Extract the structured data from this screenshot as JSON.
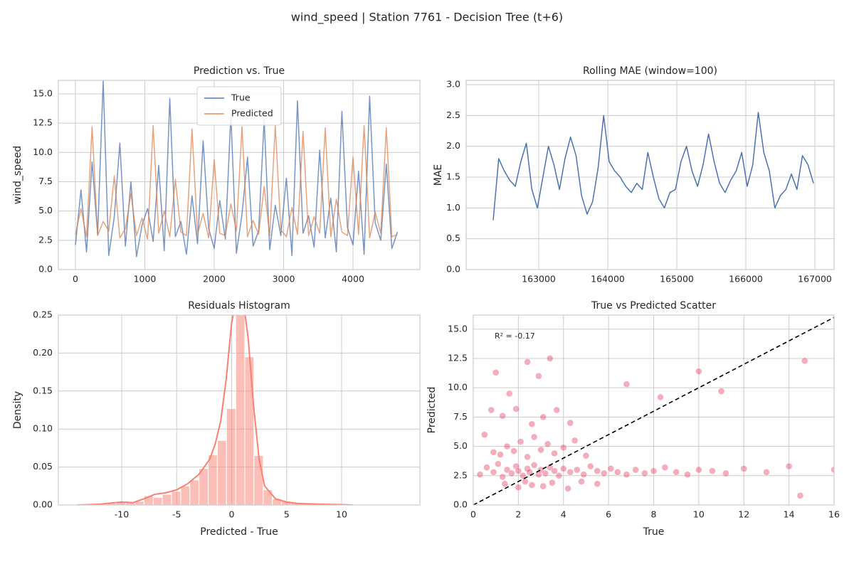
{
  "title": "wind_speed | Station 7761 - Decision Tree (t+6)",
  "chart_data": [
    {
      "type": "line",
      "title": "Prediction vs. True",
      "ylabel": "wind_speed",
      "grid": true,
      "legend": "upper center",
      "xlim": [
        -246,
        4964
      ],
      "ylim": [
        0,
        16.15
      ],
      "xticks": [
        0,
        1000,
        2000,
        3000,
        4000
      ],
      "yticks": [
        {
          "value": 0,
          "label": "0.0"
        },
        2.5,
        {
          "value": 5,
          "label": "5.0"
        },
        7.5,
        {
          "value": 10,
          "label": "10.0"
        },
        12.5,
        {
          "value": 15,
          "label": "15.0"
        }
      ],
      "x": [
        0,
        80,
        160,
        240,
        320,
        400,
        480,
        560,
        640,
        720,
        800,
        880,
        960,
        1040,
        1120,
        1200,
        1280,
        1360,
        1440,
        1520,
        1600,
        1680,
        1760,
        1840,
        1920,
        2000,
        2080,
        2160,
        2240,
        2320,
        2400,
        2480,
        2560,
        2640,
        2720,
        2800,
        2880,
        2960,
        3040,
        3120,
        3200,
        3280,
        3360,
        3440,
        3520,
        3600,
        3680,
        3760,
        3840,
        3920,
        4000,
        4080,
        4160,
        4240,
        4320,
        4400,
        4480,
        4560,
        4640
      ],
      "series": [
        {
          "name": "True",
          "color": "#4c72b0",
          "values": [
            2.1,
            6.8,
            1.5,
            9.2,
            3.0,
            16.1,
            1.2,
            4.5,
            10.8,
            2.0,
            7.5,
            1.1,
            3.8,
            5.2,
            2.4,
            8.9,
            1.6,
            14.6,
            2.8,
            4.1,
            1.3,
            6.3,
            2.2,
            11.0,
            3.5,
            1.8,
            5.9,
            2.6,
            13.2,
            1.4,
            4.7,
            9.6,
            2.0,
            3.3,
            12.8,
            1.7,
            5.5,
            2.9,
            7.8,
            1.2,
            14.4,
            3.1,
            4.6,
            1.9,
            10.2,
            2.7,
            6.1,
            1.5,
            13.5,
            3.6,
            2.1,
            8.4,
            1.3,
            14.8,
            4.0,
            2.5,
            9.0,
            1.8,
            3.2
          ]
        },
        {
          "name": "Predicted",
          "color": "#dd8452",
          "values": [
            3.0,
            5.2,
            2.8,
            12.2,
            2.9,
            4.1,
            3.3,
            8.0,
            2.7,
            3.5,
            6.5,
            2.9,
            4.4,
            2.6,
            12.3,
            3.1,
            5.0,
            2.8,
            7.7,
            3.2,
            2.9,
            12.0,
            3.0,
            4.8,
            2.7,
            9.4,
            3.1,
            2.9,
            5.6,
            3.3,
            12.2,
            2.8,
            4.2,
            3.0,
            7.1,
            2.9,
            12.3,
            3.4,
            2.8,
            5.3,
            3.0,
            11.8,
            2.9,
            4.5,
            3.1,
            12.1,
            2.8,
            6.0,
            3.2,
            2.9,
            9.6,
            3.0,
            12.3,
            2.7,
            4.9,
            3.1,
            12.1,
            2.8,
            3.0
          ]
        }
      ]
    },
    {
      "type": "line",
      "title": "Rolling MAE (window=100)",
      "ylabel": "MAE",
      "grid": true,
      "xlim": [
        161948,
        167278
      ],
      "ylim": [
        0,
        3.07
      ],
      "xticks": [
        163000,
        164000,
        165000,
        166000,
        167000
      ],
      "yticks": [
        {
          "value": 0,
          "label": "0.0"
        },
        0.5,
        {
          "value": 1,
          "label": "1.0"
        },
        1.5,
        {
          "value": 2,
          "label": "2.0"
        },
        2.5,
        {
          "value": 3,
          "label": "3.0"
        }
      ],
      "x": [
        162340,
        162420,
        162500,
        162580,
        162660,
        162740,
        162820,
        162900,
        162980,
        163060,
        163140,
        163220,
        163300,
        163380,
        163460,
        163540,
        163620,
        163700,
        163780,
        163860,
        163940,
        164020,
        164100,
        164180,
        164260,
        164340,
        164420,
        164500,
        164580,
        164660,
        164740,
        164820,
        164900,
        164980,
        165060,
        165140,
        165220,
        165300,
        165380,
        165460,
        165540,
        165620,
        165700,
        165780,
        165860,
        165940,
        166020,
        166100,
        166180,
        166260,
        166340,
        166420,
        166500,
        166580,
        166660,
        166740,
        166820,
        166900,
        166980
      ],
      "series": [
        {
          "color": "#4c72b0",
          "values": [
            0.8,
            1.8,
            1.6,
            1.45,
            1.35,
            1.75,
            2.05,
            1.3,
            1.0,
            1.5,
            2.0,
            1.7,
            1.3,
            1.8,
            2.15,
            1.85,
            1.2,
            0.9,
            1.1,
            1.65,
            2.5,
            1.75,
            1.6,
            1.5,
            1.35,
            1.25,
            1.4,
            1.3,
            1.9,
            1.5,
            1.15,
            1.0,
            1.25,
            1.3,
            1.75,
            2.0,
            1.6,
            1.35,
            1.7,
            2.2,
            1.75,
            1.4,
            1.25,
            1.45,
            1.6,
            1.9,
            1.35,
            1.7,
            2.55,
            1.9,
            1.6,
            1.0,
            1.2,
            1.3,
            1.55,
            1.3,
            1.85,
            1.7,
            1.4
          ]
        }
      ]
    },
    {
      "type": "histogram",
      "title": "Residuals Histogram",
      "xlabel": "Predicted - True",
      "ylabel": "Density",
      "grid": true,
      "color": "#fa8072",
      "xlim": [
        -15.76,
        17.12
      ],
      "ylim": [
        0,
        0.25
      ],
      "xticks": [
        -10,
        -5,
        0,
        5,
        10
      ],
      "yticks": [
        {
          "value": 0,
          "label": "0.00"
        },
        {
          "value": 0.05,
          "label": "0.05"
        },
        {
          "value": 0.1,
          "label": "0.10"
        },
        {
          "value": 0.15,
          "label": "0.15"
        },
        {
          "value": 0.2,
          "label": "0.20"
        },
        {
          "value": 0.25,
          "label": "0.25"
        }
      ],
      "bins": [
        -13.8,
        -12.97,
        -12.13,
        -11.3,
        -10.47,
        -9.63,
        -8.8,
        -7.97,
        -7.13,
        -6.3,
        -5.47,
        -4.63,
        -3.8,
        -2.97,
        -2.13,
        -1.3,
        -0.47,
        0.37,
        1.2,
        2.03,
        2.87,
        3.7,
        4.53,
        5.37,
        6.2,
        7.03,
        7.87,
        8.7,
        9.53,
        10.37,
        11.2
      ],
      "values": [
        0,
        0.001,
        0.001,
        0.002,
        0.004,
        0.003,
        0.005,
        0.012,
        0.01,
        0.014,
        0.018,
        0.025,
        0.033,
        0.048,
        0.066,
        0.085,
        0.127,
        0.265,
        0.195,
        0.065,
        0.02,
        0.008,
        0.005,
        0.003,
        0.002,
        0.002,
        0.001,
        0.001,
        0.0005,
        0.0005
      ],
      "kde": {
        "x": [
          -14,
          -12,
          -10,
          -9,
          -8,
          -7,
          -6,
          -5,
          -4,
          -3,
          -2,
          -1.5,
          -1,
          -0.5,
          0,
          0.5,
          1,
          1.5,
          2,
          2.5,
          3,
          4,
          5,
          6,
          8,
          10,
          11
        ],
        "values": [
          0,
          0.001,
          0.004,
          0.003,
          0.008,
          0.014,
          0.016,
          0.02,
          0.028,
          0.04,
          0.06,
          0.08,
          0.11,
          0.165,
          0.24,
          0.275,
          0.275,
          0.22,
          0.13,
          0.06,
          0.025,
          0.008,
          0.004,
          0.002,
          0.001,
          0.0005,
          0
        ]
      }
    },
    {
      "type": "scatter",
      "title": "True vs Predicted Scatter",
      "xlabel": "True",
      "ylabel": "Predicted",
      "grid": true,
      "diagonal": true,
      "color": "#dc143c",
      "annotation": "R² = -0.17",
      "xlim": [
        0,
        16
      ],
      "ylim": [
        0,
        16.2
      ],
      "xticks": [
        0,
        2,
        4,
        6,
        8,
        10,
        12,
        14,
        16
      ],
      "yticks": [
        {
          "value": 0,
          "label": "0.0"
        },
        2.5,
        {
          "value": 5,
          "label": "5.0"
        },
        7.5,
        {
          "value": 10,
          "label": "10.0"
        },
        12.5,
        {
          "value": 15,
          "label": "15.0"
        }
      ],
      "x": [
        0.3,
        0.6,
        0.9,
        1.1,
        1.3,
        1.5,
        1.7,
        1.9,
        2.0,
        2.2,
        2.4,
        2.5,
        2.7,
        2.9,
        3.0,
        3.2,
        3.4,
        3.6,
        3.8,
        4.0,
        4.3,
        4.6,
        4.9,
        5.2,
        5.5,
        5.8,
        6.1,
        6.4,
        6.8,
        7.2,
        7.6,
        8.0,
        8.5,
        9.0,
        9.5,
        10.0,
        10.6,
        11.2,
        12.0,
        13.0,
        14.0,
        14.5,
        16.0,
        1.2,
        1.5,
        1.8,
        2.1,
        2.4,
        2.7,
        3.0,
        3.3,
        3.6,
        4.0,
        4.5,
        5.0,
        1.4,
        2.0,
        2.3,
        2.6,
        3.1,
        3.5,
        4.2,
        4.8,
        5.5,
        1.3,
        1.9,
        2.6,
        3.1,
        3.7,
        4.3,
        0.8,
        1.6,
        2.4,
        2.9,
        3.4,
        1.0,
        6.8,
        8.3,
        10.0,
        11.0,
        14.7,
        0.5,
        0.9
      ],
      "values": [
        2.6,
        3.2,
        2.8,
        3.5,
        2.4,
        3.0,
        2.7,
        3.3,
        2.9,
        2.5,
        3.1,
        2.8,
        3.4,
        2.6,
        3.0,
        2.7,
        3.2,
        2.9,
        2.5,
        3.1,
        2.8,
        3.0,
        2.6,
        3.3,
        2.9,
        2.7,
        3.1,
        2.8,
        2.6,
        3.0,
        2.7,
        2.9,
        3.2,
        2.8,
        2.6,
        3.0,
        2.9,
        2.7,
        3.1,
        2.8,
        3.3,
        0.8,
        3.0,
        4.3,
        5.0,
        4.6,
        5.4,
        4.1,
        5.8,
        4.7,
        5.2,
        4.4,
        4.9,
        5.5,
        4.2,
        1.8,
        1.5,
        2.0,
        1.7,
        1.6,
        1.9,
        1.4,
        2.0,
        1.8,
        7.6,
        8.2,
        6.9,
        7.5,
        8.1,
        7.0,
        8.1,
        9.5,
        12.2,
        11.0,
        12.5,
        11.3,
        10.3,
        9.2,
        11.4,
        9.7,
        12.3,
        6.0,
        4.5
      ]
    }
  ]
}
